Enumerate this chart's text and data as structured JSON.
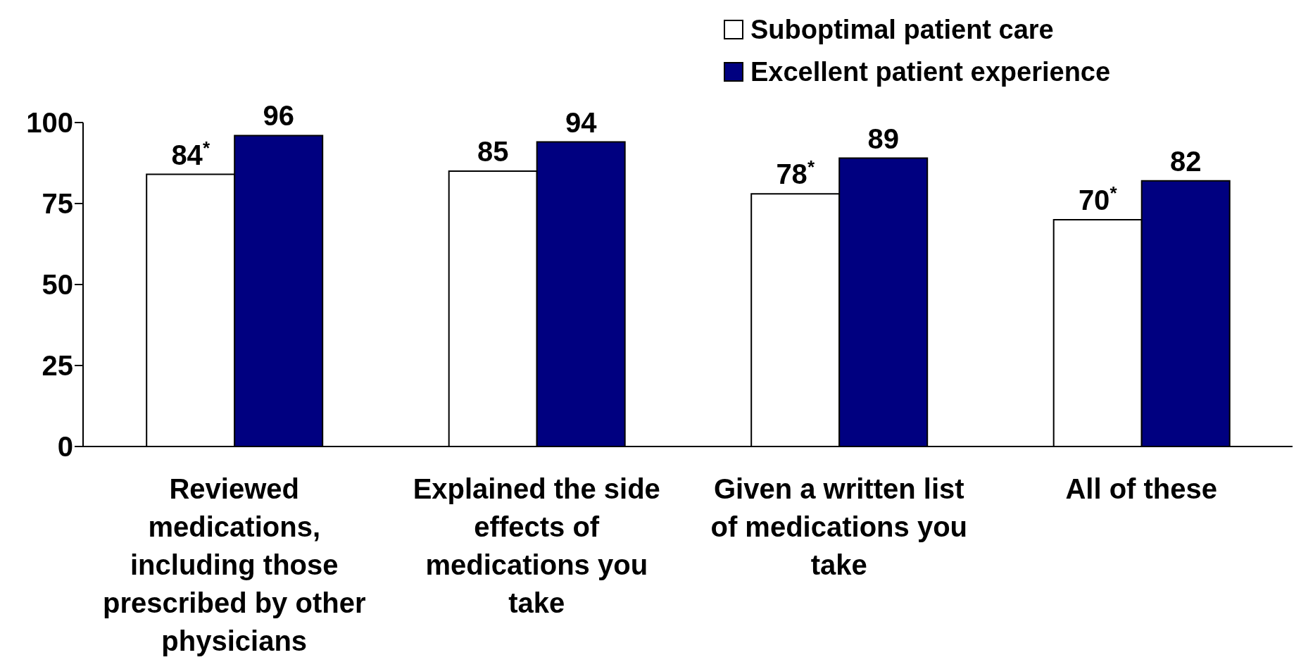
{
  "chart_data": {
    "type": "bar",
    "categories": [
      "Reviewed medications, including those prescribed by other physicians",
      "Explained the side effects of medications you take",
      "Given a written list of medications you take",
      "All of these"
    ],
    "series": [
      {
        "name": "Suboptimal patient care",
        "color": "#ffffff",
        "values": [
          84,
          85,
          78,
          70
        ],
        "value_labels": [
          "84$^{*}$",
          "85",
          "78$^{*}$",
          "70$^{*}$"
        ]
      },
      {
        "name": "Excellent patient experience",
        "color": "#000080",
        "values": [
          96,
          94,
          89,
          82
        ],
        "value_labels": [
          "96",
          "94",
          "89",
          "82"
        ]
      }
    ],
    "ylim": [
      0,
      100
    ],
    "yticks": [
      0,
      25,
      50,
      75,
      100
    ],
    "grid": false,
    "legend": "top right"
  }
}
